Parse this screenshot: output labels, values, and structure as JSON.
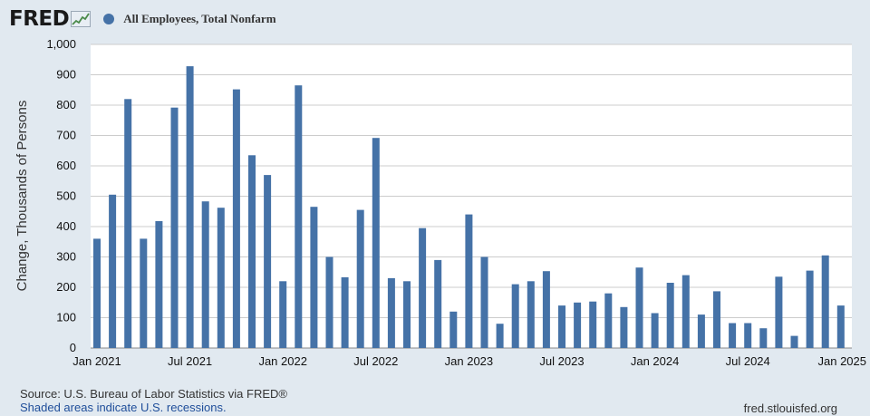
{
  "header": {
    "logo_text": "FRED",
    "legend_series": "All Employees, Total Nonfarm"
  },
  "footer": {
    "source": "Source: U.S. Bureau of Labor Statistics via FRED®",
    "shaded_note": "Shaded areas indicate U.S. recessions.",
    "site": "fred.stlouisfed.org"
  },
  "colors": {
    "bar": "#4572a7",
    "plot_background": "#ffffff",
    "page_background": "#e1e9f0",
    "grid": "#cccccc"
  },
  "icons": [
    "fred-sparkline-icon",
    "legend-dot-icon"
  ],
  "chart_data": {
    "type": "bar",
    "title": "",
    "series": [
      {
        "name": "All Employees, Total Nonfarm",
        "color": "#4572a7"
      }
    ],
    "xlabel": "",
    "ylabel": "Change, Thousands of Persons",
    "ylim": [
      0,
      1000
    ],
    "yticks": [
      0,
      100,
      200,
      300,
      400,
      500,
      600,
      700,
      800,
      900,
      1000
    ],
    "ytick_labels": [
      "0",
      "100",
      "200",
      "300",
      "400",
      "500",
      "600",
      "700",
      "800",
      "900",
      "1,000"
    ],
    "xtick_labels": [
      "Jan 2021",
      "Jul 2021",
      "Jan 2022",
      "Jul 2022",
      "Jan 2023",
      "Jul 2023",
      "Jan 2024",
      "Jul 2024",
      "Jan 2025"
    ],
    "xtick_months": [
      "2021-01",
      "2021-07",
      "2022-01",
      "2022-07",
      "2023-01",
      "2023-07",
      "2024-01",
      "2024-07",
      "2025-01"
    ],
    "grid": true,
    "categories": [
      "2021-01",
      "2021-02",
      "2021-03",
      "2021-04",
      "2021-05",
      "2021-06",
      "2021-07",
      "2021-08",
      "2021-09",
      "2021-10",
      "2021-11",
      "2021-12",
      "2022-01",
      "2022-02",
      "2022-03",
      "2022-04",
      "2022-05",
      "2022-06",
      "2022-07",
      "2022-08",
      "2022-09",
      "2022-10",
      "2022-11",
      "2022-12",
      "2023-01",
      "2023-02",
      "2023-03",
      "2023-04",
      "2023-05",
      "2023-06",
      "2023-07",
      "2023-08",
      "2023-09",
      "2023-10",
      "2023-11",
      "2023-12",
      "2024-01",
      "2024-02",
      "2024-03",
      "2024-04",
      "2024-05",
      "2024-06",
      "2024-07",
      "2024-08",
      "2024-09",
      "2024-10",
      "2024-11",
      "2024-12",
      "2025-01"
    ],
    "values": [
      360,
      505,
      820,
      360,
      418,
      792,
      928,
      483,
      462,
      852,
      635,
      570,
      220,
      865,
      465,
      300,
      233,
      455,
      692,
      230,
      220,
      395,
      290,
      120,
      440,
      300,
      80,
      210,
      220,
      253,
      140,
      150,
      153,
      180,
      135,
      265,
      115,
      215,
      240,
      110,
      187,
      82,
      82,
      65,
      235,
      40,
      255,
      305,
      140
    ]
  }
}
